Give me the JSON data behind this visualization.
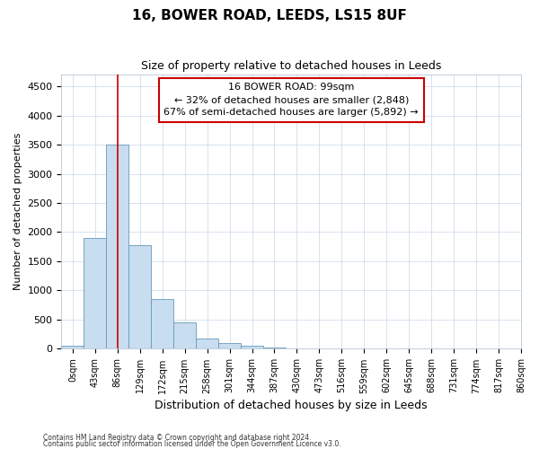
{
  "title1": "16, BOWER ROAD, LEEDS, LS15 8UF",
  "title2": "Size of property relative to detached houses in Leeds",
  "xlabel": "Distribution of detached houses by size in Leeds",
  "ylabel": "Number of detached properties",
  "bin_labels": [
    "0sqm",
    "43sqm",
    "86sqm",
    "129sqm",
    "172sqm",
    "215sqm",
    "258sqm",
    "301sqm",
    "344sqm",
    "387sqm",
    "430sqm",
    "473sqm",
    "516sqm",
    "559sqm",
    "602sqm",
    "645sqm",
    "688sqm",
    "731sqm",
    "774sqm",
    "817sqm",
    "860sqm"
  ],
  "bar_values": [
    50,
    1900,
    3500,
    1780,
    850,
    450,
    175,
    95,
    50,
    30,
    0,
    0,
    0,
    0,
    0,
    0,
    0,
    0,
    0,
    0
  ],
  "bar_color": "#c8ddef",
  "bar_edgecolor": "#6699bb",
  "vline_x": 2.0,
  "vline_color": "#cc0000",
  "annotation_text": "16 BOWER ROAD: 99sqm\n← 32% of detached houses are smaller (2,848)\n67% of semi-detached houses are larger (5,892) →",
  "annotation_box_facecolor": "#ffffff",
  "annotation_box_edgecolor": "#cc0000",
  "ylim": [
    0,
    4700
  ],
  "yticks": [
    0,
    500,
    1000,
    1500,
    2000,
    2500,
    3000,
    3500,
    4000,
    4500
  ],
  "footer1": "Contains HM Land Registry data © Crown copyright and database right 2024.",
  "footer2": "Contains public sector information licensed under the Open Government Licence v3.0.",
  "background_color": "#ffffff",
  "plot_background": "#ffffff",
  "grid_color": "#c8d8e8"
}
